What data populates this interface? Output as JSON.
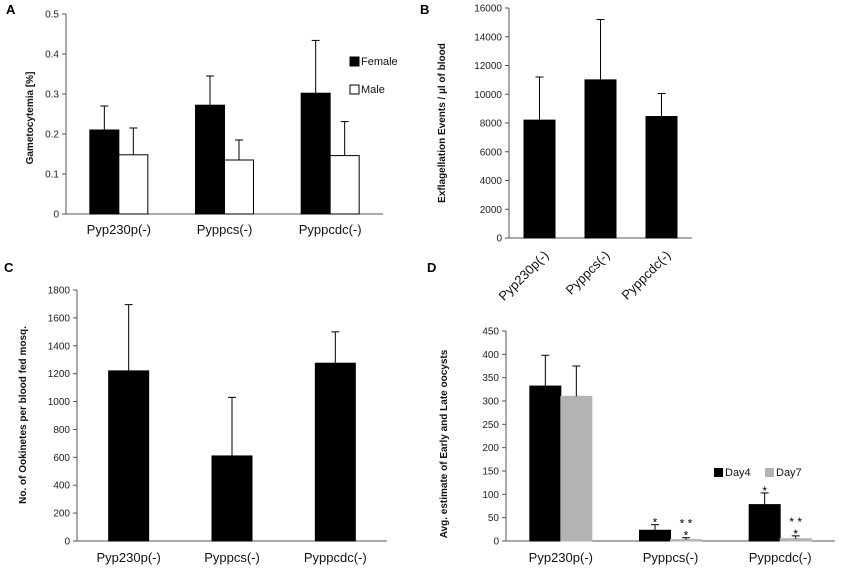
{
  "chart_data": [
    {
      "id": "A",
      "panel_label": "A",
      "type": "bar",
      "ylabel": "Gametocytemia [%]",
      "ylim": [
        0,
        0.5
      ],
      "yticks": [
        "0",
        "0.1",
        "0.2",
        "0.3",
        "0.4",
        "0.5"
      ],
      "categories": [
        "Pyp230p(-)",
        "Pyppcs(-)",
        "Pyppcdc(-)"
      ],
      "series": [
        {
          "name": "Female",
          "color": "#000000",
          "values": [
            0.21,
            0.272,
            0.302
          ],
          "errors": [
            0.06,
            0.073,
            0.132
          ]
        },
        {
          "name": "Male",
          "color": "#ffffff",
          "values": [
            0.148,
            0.135,
            0.146
          ],
          "errors": [
            0.067,
            0.05,
            0.085
          ]
        }
      ]
    },
    {
      "id": "B",
      "panel_label": "B",
      "type": "bar",
      "ylabel": "Exflagellation Events / µl of blood",
      "ylim": [
        0,
        16000
      ],
      "yticks": [
        "0",
        "2000",
        "4000",
        "6000",
        "8000",
        "10000",
        "12000",
        "14000",
        "16000"
      ],
      "categories": [
        "Pyp230p(-)",
        "Pyppcs(-)",
        "Pyppcdc(-)"
      ],
      "series": [
        {
          "name": "Exflagellation",
          "color": "#000000",
          "values": [
            8200,
            11000,
            8450
          ],
          "errors": [
            3000,
            4200,
            1600
          ]
        }
      ]
    },
    {
      "id": "C",
      "panel_label": "C",
      "type": "bar",
      "ylabel": "No. of Ookinetes per blood fed mosq.",
      "ylim": [
        0,
        1800
      ],
      "yticks": [
        "0",
        "200",
        "400",
        "600",
        "800",
        "1000",
        "1200",
        "1400",
        "1600",
        "1800"
      ],
      "categories": [
        "Pyp230p(-)",
        "Pyppcs(-)",
        "Pyppcdc(-)"
      ],
      "series": [
        {
          "name": "Ookinetes",
          "color": "#000000",
          "values": [
            1220,
            610,
            1275
          ],
          "errors": [
            475,
            420,
            225
          ]
        }
      ]
    },
    {
      "id": "D",
      "panel_label": "D",
      "type": "bar",
      "ylabel": "Avg. estimate of Early and Late oocysts",
      "ylim": [
        0,
        450
      ],
      "yticks": [
        "0",
        "50",
        "100",
        "150",
        "200",
        "250",
        "300",
        "350",
        "400",
        "450"
      ],
      "categories": [
        "Pyp230p(-)",
        "Pyppcs(-)",
        "Pyppcdc(-)"
      ],
      "series": [
        {
          "name": "Day4",
          "color": "#000000",
          "values": [
            332,
            23,
            78
          ],
          "errors": [
            66,
            12,
            25
          ]
        },
        {
          "name": "Day7",
          "color": "#b3b3b3",
          "values": [
            310,
            3,
            5
          ],
          "errors": [
            65,
            4,
            6
          ]
        }
      ],
      "annotations": [
        {
          "category": 1,
          "series": 0,
          "text": "*"
        },
        {
          "category": 1,
          "series": 1,
          "text": "* *"
        },
        {
          "category": 1,
          "series": 1,
          "text": "*"
        },
        {
          "category": 2,
          "series": 0,
          "text": "*"
        },
        {
          "category": 2,
          "series": 1,
          "text": "* *"
        },
        {
          "category": 2,
          "series": 1,
          "text": "*"
        }
      ]
    }
  ]
}
